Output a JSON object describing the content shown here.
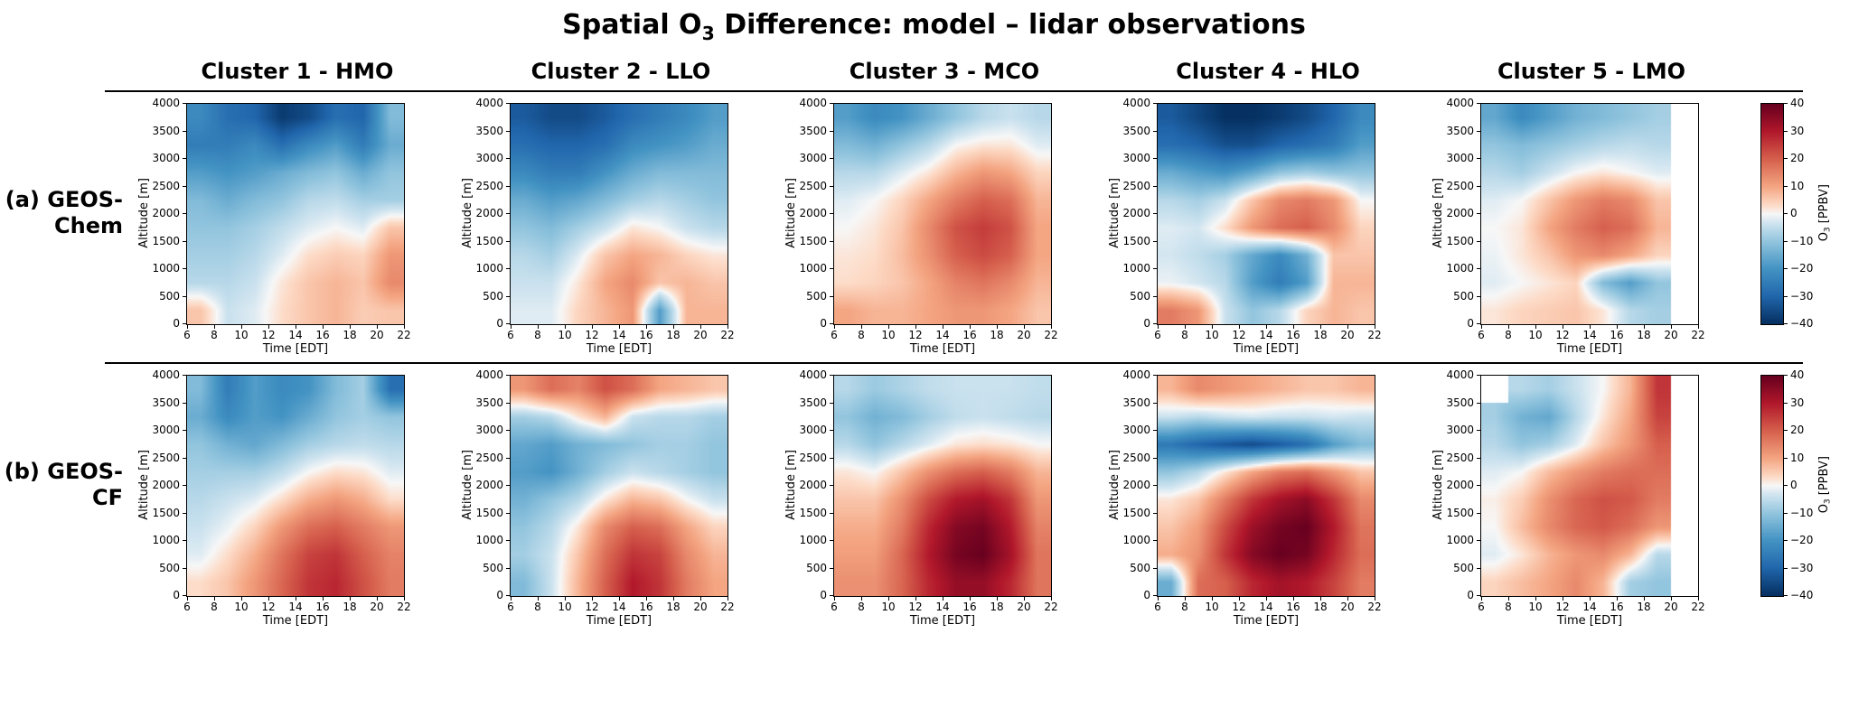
{
  "title": {
    "prefix": "Spatial O",
    "sub": "3",
    "suffix": " Difference: model – lidar observations"
  },
  "column_headers": [
    "Cluster 1 - HMO",
    "Cluster 2 - LLO",
    "Cluster 3 - MCO",
    "Cluster 4 - HLO",
    "Cluster 5 - LMO"
  ],
  "row_labels": [
    {
      "line1": "(a) GEOS-",
      "line2": "Chem"
    },
    {
      "line1": "(b) GEOS-",
      "line2": "CF"
    }
  ],
  "axes": {
    "x_label": "Time [EDT]",
    "y_label": "Altitude [m]",
    "x_ticks": [
      6,
      8,
      10,
      12,
      14,
      16,
      18,
      20,
      22
    ],
    "y_ticks": [
      0,
      500,
      1000,
      1500,
      2000,
      2500,
      3000,
      3500,
      4000
    ],
    "x_range": [
      6,
      22
    ],
    "y_range": [
      0,
      4000
    ]
  },
  "colorbar": {
    "label_prefix": "O",
    "label_sub": "3",
    "label_suffix": " [PPBV]",
    "ticks": [
      40,
      30,
      20,
      10,
      0,
      -10,
      -20,
      -30,
      -40
    ],
    "min": -40,
    "max": 40
  },
  "chart_data": {
    "type": "heatmap",
    "title": "Spatial O3 Difference: model − lidar observations",
    "vmin": -40,
    "vmax": 40,
    "units": "PPBV",
    "colormap": "RdBu_r (blue = model lower than lidar, red = model higher than lidar)",
    "x_bin_edges_hours_EDT": [
      6,
      8,
      10,
      12,
      14,
      16,
      18,
      20,
      22
    ],
    "y_bin_edges_m": [
      4000,
      3500,
      3000,
      2500,
      2000,
      1500,
      1000,
      500,
      0
    ],
    "grid_note": "values[row][col]: rows top to bottom = 4000 to 0 m in 500 m bands; cols left to right = 6 to 22 EDT in 2 h bins; null = no data (white)",
    "panels": [
      {
        "row_index": 0,
        "model": "GEOS-Chem",
        "cluster": "Cluster 1 - HMO",
        "values": [
          [
            -22,
            -28,
            -30,
            -38,
            -35,
            -28,
            -30,
            -12
          ],
          [
            -25,
            -25,
            -22,
            -28,
            -22,
            -18,
            -25,
            -15
          ],
          [
            -18,
            -20,
            -18,
            -15,
            -12,
            -10,
            -15,
            -10
          ],
          [
            -12,
            -15,
            -12,
            -10,
            -6,
            -5,
            -8,
            -8
          ],
          [
            -10,
            -10,
            -8,
            -5,
            -2,
            0,
            -2,
            6
          ],
          [
            -8,
            -8,
            -6,
            -2,
            3,
            5,
            4,
            12
          ],
          [
            -6,
            -6,
            -4,
            2,
            6,
            8,
            6,
            14
          ],
          [
            6,
            -4,
            -2,
            3,
            6,
            8,
            5,
            6
          ]
        ]
      },
      {
        "row_index": 0,
        "model": "GEOS-Chem",
        "cluster": "Cluster 2 - LLO",
        "values": [
          [
            -32,
            -35,
            -35,
            -32,
            -28,
            -25,
            -22,
            -18
          ],
          [
            -28,
            -30,
            -30,
            -28,
            -22,
            -20,
            -18,
            -15
          ],
          [
            -22,
            -25,
            -25,
            -20,
            -15,
            -12,
            -12,
            -12
          ],
          [
            -15,
            -18,
            -16,
            -12,
            -8,
            -6,
            -8,
            -10
          ],
          [
            -10,
            -12,
            -8,
            -4,
            2,
            0,
            -4,
            -6
          ],
          [
            -6,
            -8,
            -2,
            6,
            10,
            8,
            4,
            2
          ],
          [
            -4,
            -4,
            2,
            10,
            14,
            6,
            8,
            6
          ],
          [
            -2,
            -2,
            4,
            8,
            12,
            -18,
            8,
            8
          ]
        ]
      },
      {
        "row_index": 0,
        "model": "GEOS-Chem",
        "cluster": "Cluster 3 - MCO",
        "values": [
          [
            -18,
            -22,
            -20,
            -15,
            -10,
            -6,
            -4,
            -6
          ],
          [
            -12,
            -14,
            -10,
            -6,
            0,
            2,
            2,
            -2
          ],
          [
            -6,
            -6,
            -2,
            2,
            8,
            12,
            10,
            4
          ],
          [
            -2,
            0,
            4,
            10,
            16,
            20,
            18,
            8
          ],
          [
            0,
            2,
            6,
            14,
            22,
            25,
            22,
            10
          ],
          [
            2,
            3,
            7,
            13,
            20,
            23,
            20,
            10
          ],
          [
            3,
            4,
            6,
            10,
            15,
            17,
            14,
            8
          ],
          [
            10,
            8,
            8,
            10,
            12,
            12,
            10,
            6
          ]
        ]
      },
      {
        "row_index": 0,
        "model": "GEOS-Chem",
        "cluster": "Cluster 4 - HLO",
        "values": [
          [
            -32,
            -36,
            -40,
            -40,
            -38,
            -35,
            -30,
            -22
          ],
          [
            -28,
            -30,
            -34,
            -34,
            -30,
            -28,
            -25,
            -18
          ],
          [
            -15,
            -18,
            -20,
            -16,
            -10,
            -8,
            -10,
            -10
          ],
          [
            -6,
            -8,
            -4,
            6,
            14,
            16,
            12,
            0
          ],
          [
            -2,
            -3,
            3,
            12,
            18,
            20,
            14,
            4
          ],
          [
            -3,
            -5,
            -8,
            -16,
            -22,
            -14,
            6,
            6
          ],
          [
            -1,
            -3,
            -6,
            -18,
            -25,
            -18,
            8,
            8
          ],
          [
            16,
            12,
            -4,
            -10,
            -6,
            4,
            8,
            6
          ]
        ]
      },
      {
        "row_index": 0,
        "model": "GEOS-Chem",
        "cluster": "Cluster 5 - LMO",
        "values": [
          [
            -16,
            -22,
            -18,
            -14,
            -12,
            -10,
            -8,
            null
          ],
          [
            -10,
            -12,
            -10,
            -8,
            -6,
            -5,
            -6,
            null
          ],
          [
            -6,
            -8,
            -4,
            0,
            2,
            0,
            -2,
            null
          ],
          [
            -2,
            0,
            6,
            12,
            16,
            14,
            6,
            null
          ],
          [
            0,
            2,
            10,
            16,
            20,
            18,
            8,
            null
          ],
          [
            -1,
            2,
            6,
            12,
            14,
            10,
            4,
            null
          ],
          [
            -2,
            0,
            2,
            4,
            -12,
            -18,
            -10,
            null
          ],
          [
            2,
            4,
            5,
            6,
            2,
            -6,
            -8,
            null
          ]
        ]
      },
      {
        "row_index": 1,
        "model": "GEOS-CF",
        "cluster": "Cluster 1 - HMO",
        "values": [
          [
            -12,
            -25,
            -18,
            -22,
            -20,
            -12,
            -8,
            -28
          ],
          [
            -15,
            -22,
            -18,
            -20,
            -15,
            -10,
            -8,
            -10
          ],
          [
            -10,
            -14,
            -16,
            -12,
            -8,
            -6,
            -5,
            -6
          ],
          [
            -8,
            -8,
            -8,
            -5,
            0,
            3,
            2,
            -2
          ],
          [
            -6,
            -4,
            -2,
            3,
            9,
            12,
            9,
            3
          ],
          [
            -4,
            -1,
            4,
            12,
            18,
            20,
            16,
            12
          ],
          [
            -2,
            3,
            9,
            17,
            24,
            26,
            20,
            15
          ],
          [
            3,
            6,
            12,
            19,
            26,
            28,
            22,
            16
          ]
        ]
      },
      {
        "row_index": 1,
        "model": "GEOS-CF",
        "cluster": "Cluster 2 - LLO",
        "values": [
          [
            12,
            18,
            15,
            22,
            18,
            10,
            8,
            6
          ],
          [
            -8,
            -6,
            2,
            8,
            -4,
            -6,
            -6,
            -8
          ],
          [
            -16,
            -18,
            -14,
            -12,
            -10,
            -8,
            -8,
            -10
          ],
          [
            -18,
            -20,
            -14,
            -8,
            -4,
            -6,
            -8,
            -10
          ],
          [
            -14,
            -10,
            -6,
            2,
            8,
            6,
            0,
            -4
          ],
          [
            -10,
            -6,
            2,
            14,
            20,
            18,
            10,
            4
          ],
          [
            -8,
            -4,
            6,
            18,
            26,
            24,
            14,
            8
          ],
          [
            -12,
            -4,
            8,
            20,
            30,
            26,
            16,
            10
          ]
        ]
      },
      {
        "row_index": 1,
        "model": "GEOS-CF",
        "cluster": "Cluster 3 - MCO",
        "values": [
          [
            -6,
            -9,
            -7,
            -5,
            -4,
            -4,
            -4,
            -5
          ],
          [
            -10,
            -14,
            -12,
            -8,
            -5,
            -4,
            -5,
            -6
          ],
          [
            -6,
            -10,
            -6,
            -2,
            2,
            3,
            2,
            0
          ],
          [
            2,
            0,
            6,
            13,
            18,
            20,
            16,
            8
          ],
          [
            6,
            6,
            13,
            23,
            30,
            32,
            26,
            12
          ],
          [
            9,
            9,
            16,
            28,
            36,
            38,
            30,
            15
          ],
          [
            11,
            11,
            19,
            30,
            38,
            40,
            32,
            17
          ],
          [
            13,
            13,
            19,
            28,
            34,
            34,
            28,
            17
          ]
        ]
      },
      {
        "row_index": 1,
        "model": "GEOS-CF",
        "cluster": "Cluster 4 - HLO",
        "values": [
          [
            8,
            14,
            12,
            10,
            8,
            6,
            6,
            8
          ],
          [
            -4,
            -6,
            -4,
            -3,
            -4,
            -4,
            -3,
            -4
          ],
          [
            -26,
            -30,
            -33,
            -35,
            -32,
            -28,
            -18,
            -12
          ],
          [
            -10,
            -6,
            2,
            10,
            16,
            18,
            12,
            6
          ],
          [
            2,
            6,
            16,
            26,
            32,
            35,
            26,
            14
          ],
          [
            6,
            11,
            23,
            33,
            38,
            40,
            30,
            17
          ],
          [
            9,
            13,
            26,
            36,
            40,
            38,
            28,
            18
          ],
          [
            -15,
            18,
            20,
            28,
            32,
            30,
            24,
            16
          ]
        ]
      },
      {
        "row_index": 1,
        "model": "GEOS-CF",
        "cluster": "Cluster 5 - LMO",
        "values": [
          [
            null,
            -6,
            -8,
            -4,
            0,
            8,
            26,
            null
          ],
          [
            -8,
            -14,
            -16,
            -6,
            2,
            10,
            24,
            null
          ],
          [
            -6,
            -10,
            -8,
            -2,
            6,
            12,
            20,
            null
          ],
          [
            -2,
            0,
            7,
            12,
            16,
            18,
            18,
            null
          ],
          [
            1,
            5,
            13,
            19,
            22,
            21,
            16,
            null
          ],
          [
            0,
            7,
            14,
            19,
            21,
            18,
            12,
            null
          ],
          [
            -2,
            2,
            8,
            12,
            14,
            8,
            -6,
            null
          ],
          [
            4,
            7,
            10,
            14,
            8,
            -8,
            -10,
            null
          ]
        ]
      }
    ]
  }
}
